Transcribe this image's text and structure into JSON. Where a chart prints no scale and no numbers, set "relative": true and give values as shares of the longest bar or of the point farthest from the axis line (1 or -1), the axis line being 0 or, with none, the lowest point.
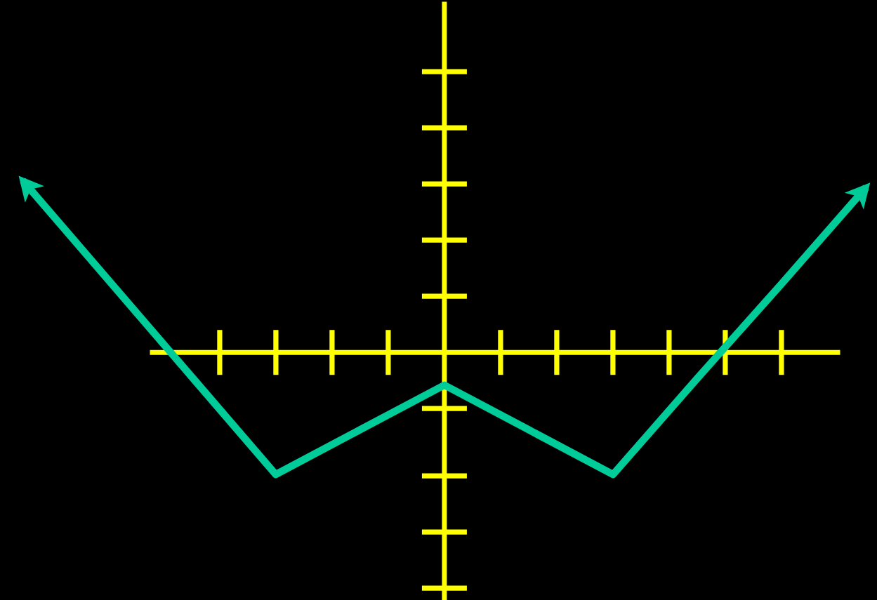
{
  "chart_data": {
    "type": "line",
    "relative": true,
    "categories": [
      null,
      null,
      null,
      null,
      null,
      null,
      null,
      null,
      null,
      null,
      null
    ],
    "series": [
      {
        "color": "#00cc99",
        "values": [
          1,
          0.43,
          -0.14,
          -0.71,
          -0.45,
          -0.19,
          -0.45,
          -0.71,
          -0.15,
          0.4,
          0.96
        ]
      }
    ],
    "ref_lines": [
      {
        "axis": "y",
        "value": 0,
        "color": "#ffff00"
      }
    ]
  }
}
